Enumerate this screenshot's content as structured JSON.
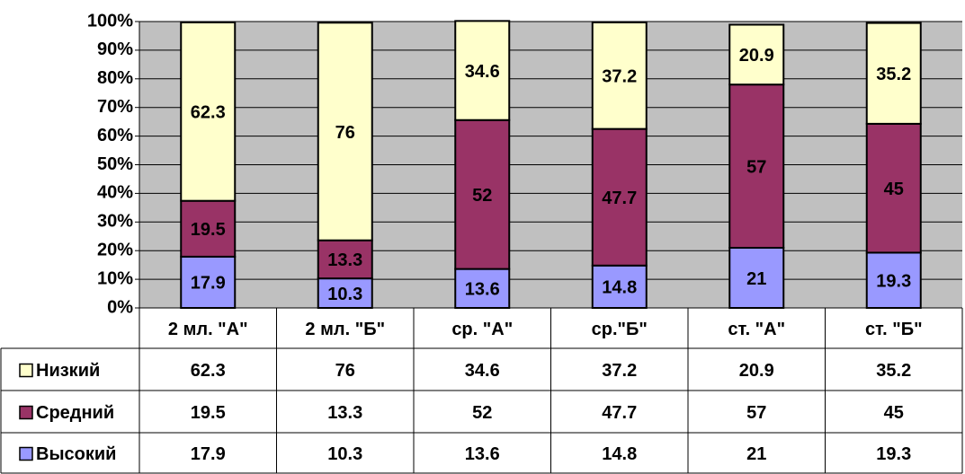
{
  "chart_data": {
    "type": "bar",
    "stacked": true,
    "data_table": true,
    "grid": true,
    "plot_background": "#c0c0c0",
    "categories": [
      "2 мл. \"А\"",
      "2 мл. \"Б\"",
      "ср. \"А\"",
      "ср.\"Б\"",
      "ст. \"А\"",
      "ст. \"Б\""
    ],
    "series": [
      {
        "name": "Низкий",
        "color": "#ffffcc",
        "values": [
          62.3,
          76,
          34.6,
          37.2,
          20.9,
          35.2
        ]
      },
      {
        "name": "Средний",
        "color": "#993366",
        "values": [
          19.5,
          13.3,
          52,
          47.7,
          57,
          45
        ]
      },
      {
        "name": "Высокий",
        "color": "#9999ff",
        "values": [
          17.9,
          10.3,
          13.6,
          14.8,
          21,
          19.3
        ]
      }
    ],
    "ylim": [
      0,
      100
    ],
    "yticks": [
      {
        "value": 0,
        "label": "0%"
      },
      {
        "value": 10,
        "label": "10%"
      },
      {
        "value": 20,
        "label": "20%"
      },
      {
        "value": 30,
        "label": "30%"
      },
      {
        "value": 40,
        "label": "40%"
      },
      {
        "value": 50,
        "label": "50%"
      },
      {
        "value": 60,
        "label": "60%"
      },
      {
        "value": 70,
        "label": "70%"
      },
      {
        "value": 80,
        "label": "80%"
      },
      {
        "value": 90,
        "label": "90%"
      },
      {
        "value": 100,
        "label": "100%"
      }
    ]
  }
}
